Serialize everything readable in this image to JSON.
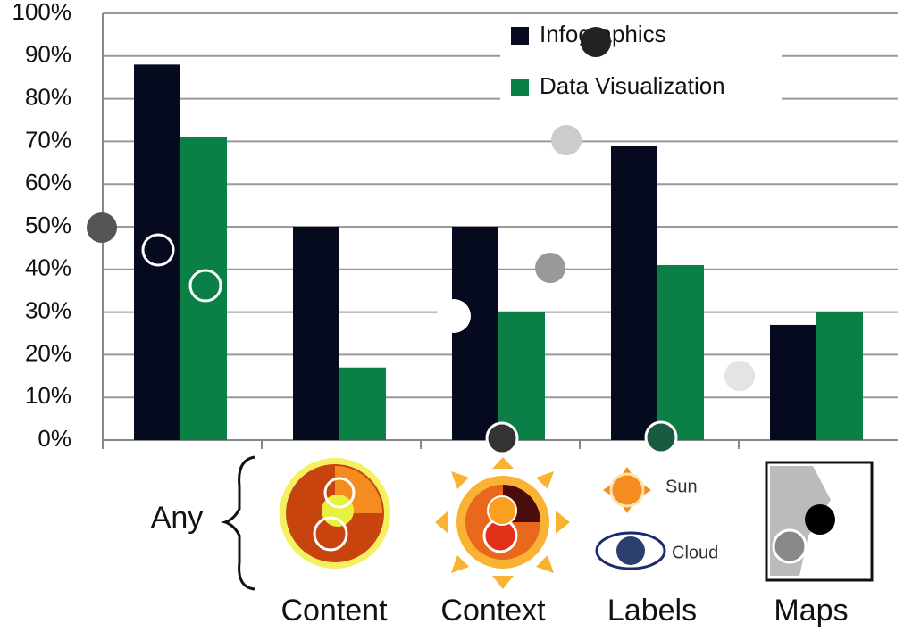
{
  "chart_data": {
    "type": "bar",
    "categories": [
      "Any",
      "Content",
      "Context",
      "Labels",
      "Maps"
    ],
    "series": [
      {
        "name": "Infographics",
        "color": "#050a1e",
        "values": [
          88,
          50,
          50,
          69,
          27
        ]
      },
      {
        "name": "Data Visualization",
        "color": "#0a8046",
        "values": [
          71,
          17,
          30,
          41,
          30
        ]
      }
    ],
    "ylim": [
      0,
      100
    ],
    "yticks": [
      {
        "value": 0,
        "label": "0%"
      },
      {
        "value": 10,
        "label": "10%"
      },
      {
        "value": 20,
        "label": "20%"
      },
      {
        "value": 30,
        "label": "30%"
      },
      {
        "value": 40,
        "label": "40%"
      },
      {
        "value": 50,
        "label": "50%"
      },
      {
        "value": 60,
        "label": "60%"
      },
      {
        "value": 70,
        "label": "70%"
      },
      {
        "value": 80,
        "label": "80%"
      },
      {
        "value": 90,
        "label": "90%"
      },
      {
        "value": 100,
        "label": "100%"
      }
    ],
    "grid": true,
    "annotations": [
      "Sun",
      "Cloud"
    ]
  }
}
